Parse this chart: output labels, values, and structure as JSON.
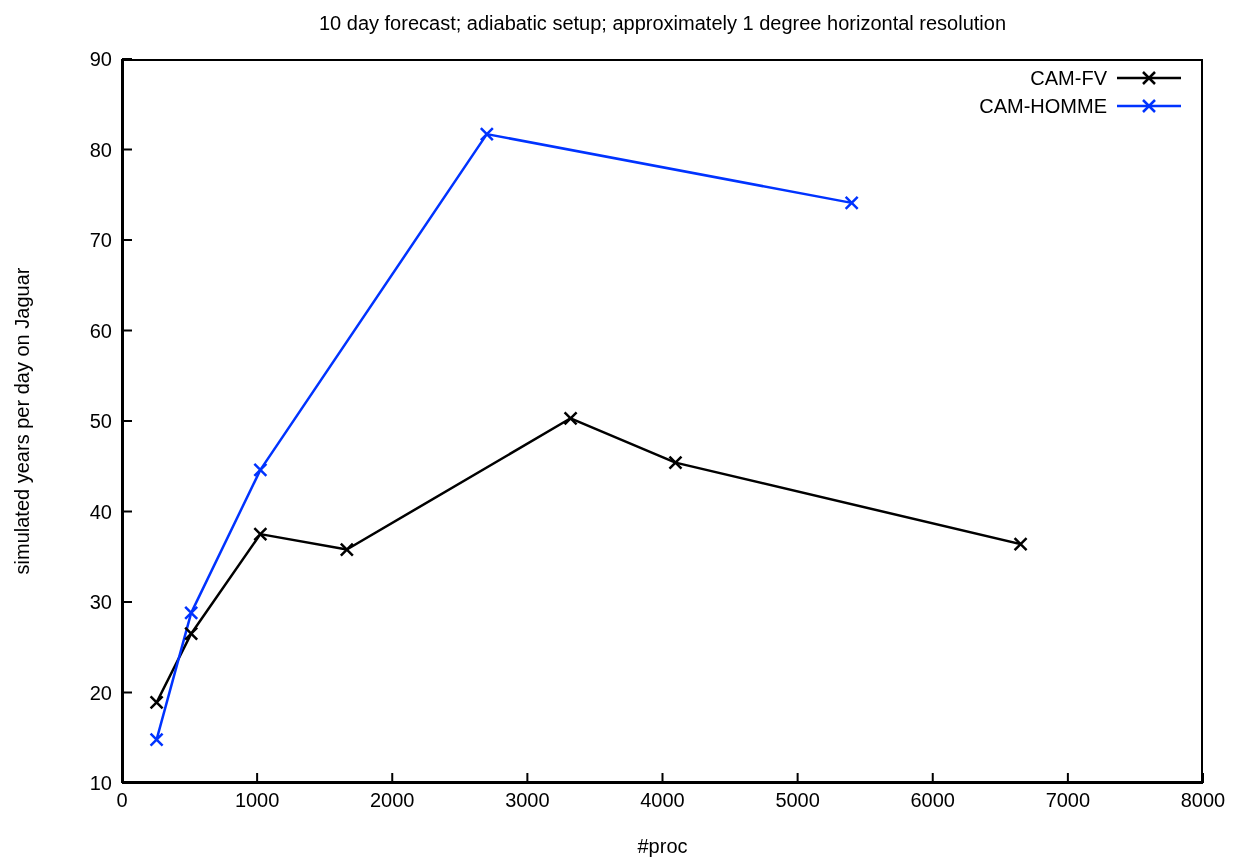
{
  "chart_data": {
    "type": "line",
    "title": "10 day forecast; adiabatic setup; approximately 1 degree horizontal resolution",
    "xlabel": "#proc",
    "ylabel": "simulated years per day on Jaguar",
    "series": [
      {
        "name": "CAM-FV",
        "color": "#000000",
        "x": [
          256,
          512,
          1024,
          1664,
          3320,
          4096,
          6650
        ],
        "values": [
          18.9,
          26.5,
          37.5,
          35.8,
          50.3,
          45.4,
          36.4
        ]
      },
      {
        "name": "CAM-HOMME",
        "color": "#0033ff",
        "x": [
          256,
          512,
          1024,
          2700,
          5400
        ],
        "values": [
          14.8,
          28.8,
          44.6,
          81.7,
          74.1
        ]
      }
    ],
    "xlim": [
      0,
      8000
    ],
    "xticks": [
      0,
      1000,
      2000,
      3000,
      4000,
      5000,
      6000,
      7000,
      8000
    ],
    "ylim": [
      10,
      90
    ],
    "yticks": [
      10,
      20,
      30,
      40,
      50,
      60,
      70,
      80,
      90
    ],
    "marker": "cross",
    "legend": "top right",
    "grid": false
  }
}
